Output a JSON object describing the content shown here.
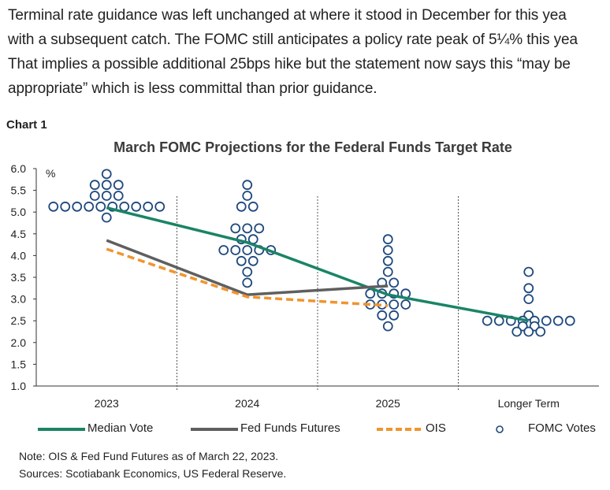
{
  "paragraph": [
    "Terminal rate guidance was left unchanged at where it stood in December for this yea",
    "with a subsequent catch. The FOMC still anticipates a policy rate peak of 5¼% this yea",
    "That implies a possible additional 25bps hike but the statement now says this “may be",
    "appropriate” which is less committal than prior guidance."
  ],
  "chart_label": "Chart 1",
  "chart_data": {
    "type": "line",
    "title": "March FOMC Projections for the Federal Funds Target Rate",
    "ylabel": "%",
    "ylim": [
      1.0,
      6.0
    ],
    "yticks": [
      "6.0",
      "5.5",
      "5.0",
      "4.5",
      "4.0",
      "3.5",
      "3.0",
      "2.5",
      "2.0",
      "1.5",
      "1.0"
    ],
    "categories": [
      "2023",
      "2024",
      "2025",
      "Longer Term"
    ],
    "grid": false,
    "legend_position": "bottom",
    "series": [
      {
        "name": "Median Vote",
        "color": "#1a8466",
        "style": "solid",
        "values": [
          5.1,
          4.3,
          3.1,
          2.5
        ]
      },
      {
        "name": "Fed Funds Futures",
        "color": "#5f5f5f",
        "style": "solid",
        "values": [
          4.35,
          3.1,
          3.3,
          null
        ]
      },
      {
        "name": "OIS",
        "color": "#f0952f",
        "style": "dashed",
        "values": [
          4.15,
          3.05,
          2.85,
          null
        ]
      }
    ],
    "fomc_votes": {
      "name": "FOMC Votes",
      "color": "#1f497d",
      "dots": [
        [
          {
            "v": 5.875,
            "n": 1
          },
          {
            "v": 5.625,
            "n": 3
          },
          {
            "v": 5.375,
            "n": 3
          },
          {
            "v": 5.125,
            "n": 10
          },
          {
            "v": 4.875,
            "n": 1
          }
        ],
        [
          {
            "v": 5.625,
            "n": 1
          },
          {
            "v": 5.375,
            "n": 1
          },
          {
            "v": 5.125,
            "n": 2
          },
          {
            "v": 4.625,
            "n": 3
          },
          {
            "v": 4.375,
            "n": 2
          },
          {
            "v": 4.125,
            "n": 5
          },
          {
            "v": 3.875,
            "n": 2
          },
          {
            "v": 3.625,
            "n": 1
          },
          {
            "v": 3.375,
            "n": 1
          }
        ],
        [
          {
            "v": 4.375,
            "n": 1
          },
          {
            "v": 4.125,
            "n": 1
          },
          {
            "v": 3.875,
            "n": 1
          },
          {
            "v": 3.625,
            "n": 1
          },
          {
            "v": 3.375,
            "n": 2
          },
          {
            "v": 3.125,
            "n": 4
          },
          {
            "v": 2.875,
            "n": 4
          },
          {
            "v": 2.625,
            "n": 2
          },
          {
            "v": 2.375,
            "n": 1
          }
        ],
        [
          {
            "v": 3.625,
            "n": 1
          },
          {
            "v": 3.25,
            "n": 1
          },
          {
            "v": 3.0,
            "n": 1
          },
          {
            "v": 2.625,
            "n": 1
          },
          {
            "v": 2.5,
            "n": 8
          },
          {
            "v": 2.375,
            "n": 2
          },
          {
            "v": 2.25,
            "n": 3
          }
        ]
      ]
    }
  },
  "notes": [
    "Note: OIS & Fed Fund Futures as of March 22, 2023.",
    "Sources: Scotiabank Economics, US Federal Reserve."
  ]
}
